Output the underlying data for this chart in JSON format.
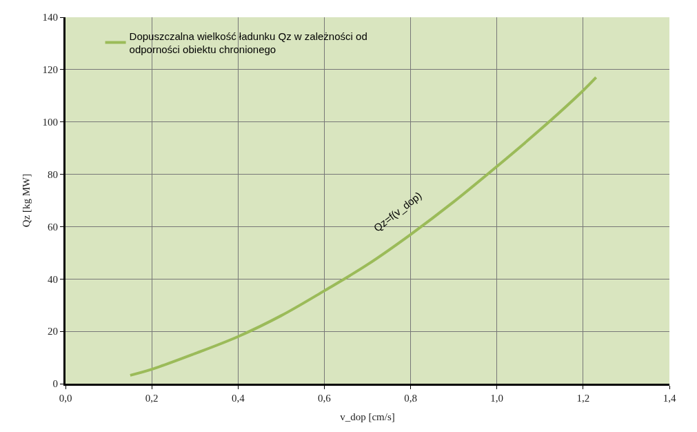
{
  "chart_data": {
    "type": "line",
    "xlabel": "v_dop [cm/s]",
    "ylabel": "Qz [kg MW]",
    "series": [
      {
        "name": "Dopuszczalna wielkość ładunku Qz w zależności od odporności obiektu chronionego",
        "color": "#9bbb59",
        "x": [
          0.15,
          0.2,
          0.3,
          0.4,
          0.5,
          0.6,
          0.7,
          0.8,
          0.9,
          1.0,
          1.1,
          1.2,
          1.23
        ],
        "values": [
          3.2,
          5.5,
          11.5,
          18,
          26,
          35.5,
          45.5,
          57,
          69.5,
          83,
          97,
          112,
          117
        ]
      }
    ],
    "annotations": [
      "Qz=f(v_dop)"
    ],
    "xlim": [
      0,
      1.4
    ],
    "xticks": [
      {
        "value": 0,
        "label": "0,0"
      },
      {
        "value": 0.2,
        "label": "0,2"
      },
      {
        "value": 0.4,
        "label": "0,4"
      },
      {
        "value": 0.6,
        "label": "0,6"
      },
      {
        "value": 0.8,
        "label": "0,8"
      },
      {
        "value": 1.0,
        "label": "1,0"
      },
      {
        "value": 1.2,
        "label": "1,2"
      },
      {
        "value": 1.4,
        "label": "1,4"
      }
    ],
    "ylim": [
      0,
      140
    ],
    "yticks": [
      0,
      20,
      40,
      60,
      80,
      100,
      120,
      140
    ],
    "grid": true,
    "legend": "top left",
    "marker": "none",
    "line_style": "solid"
  }
}
